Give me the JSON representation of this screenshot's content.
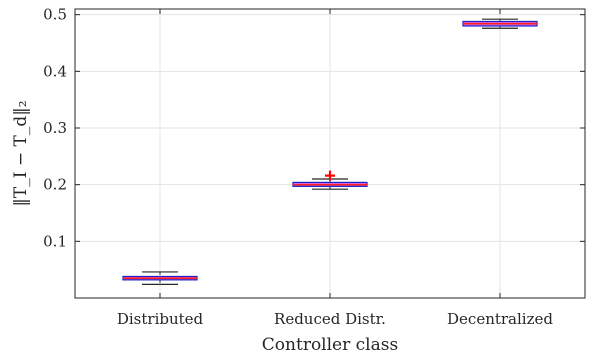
{
  "chart_data": {
    "type": "box",
    "categories": [
      "Distributed",
      "Reduced Distr.",
      "Decentralized"
    ],
    "boxes": [
      {
        "category": "Distributed",
        "min": 0.024,
        "q1": 0.032,
        "median": 0.035,
        "q3": 0.038,
        "max": 0.046,
        "outliers": []
      },
      {
        "category": "Reduced Distr.",
        "min": 0.192,
        "q1": 0.197,
        "median": 0.2,
        "q3": 0.204,
        "max": 0.21,
        "outliers": [
          0.216
        ]
      },
      {
        "category": "Decentralized",
        "min": 0.476,
        "q1": 0.48,
        "median": 0.484,
        "q3": 0.488,
        "max": 0.492,
        "outliers": []
      }
    ],
    "xlabel": "Controller class",
    "ylabel": "‖T_I − T_d‖₂",
    "ylim": [
      0,
      0.51
    ],
    "yticks": [
      0.1,
      0.2,
      0.3,
      0.4,
      0.5
    ],
    "ytick_labels": [
      "0.1",
      "0.2",
      "0.3",
      "0.4",
      "0.5"
    ],
    "grid": true,
    "colors": {
      "box_edge": "#2020c8",
      "box_fill": "#d070f0",
      "median": "#ff2020",
      "whisker": "#262626",
      "outlier": "#ff0000"
    }
  }
}
